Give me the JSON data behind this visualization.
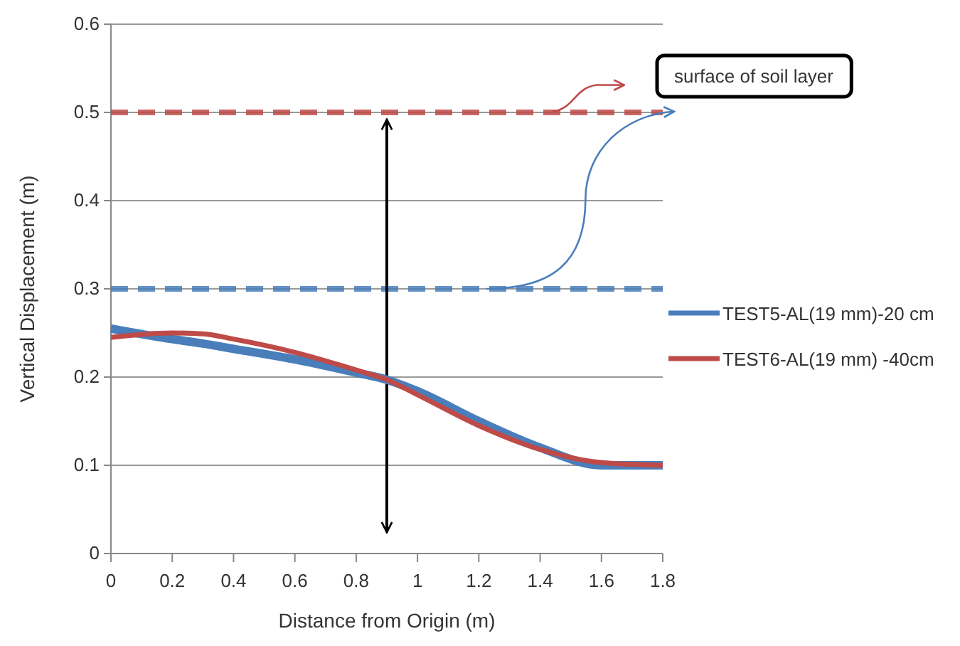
{
  "chart_data": {
    "type": "line",
    "xlabel": "Distance from Origin (m)",
    "ylabel": "Vertical Displacement (m)",
    "x": [
      0,
      0.2,
      0.3,
      0.4,
      0.6,
      0.8,
      0.9,
      1.0,
      1.2,
      1.4,
      1.6,
      1.8
    ],
    "series": [
      {
        "name": "TEST5-AL(19 mm)-20 cm",
        "color": "#4a7ebb",
        "values": [
          0.255,
          0.243,
          0.238,
          0.232,
          0.22,
          0.205,
          0.197,
          0.184,
          0.15,
          0.12,
          0.1,
          0.1
        ]
      },
      {
        "name": "TEST6-AL(19 mm) -40cm",
        "color": "#be4b48",
        "values": [
          0.245,
          0.25,
          0.249,
          0.243,
          0.228,
          0.208,
          0.197,
          0.18,
          0.145,
          0.118,
          0.103,
          0.1
        ]
      }
    ],
    "xlim": [
      0,
      1.8
    ],
    "xticks": [
      0,
      0.2,
      0.4,
      0.6,
      0.8,
      1,
      1.2,
      1.4,
      1.6,
      1.8
    ],
    "ylim": [
      0,
      0.6
    ],
    "yticks": [
      0,
      0.1,
      0.2,
      0.3,
      0.4,
      0.5,
      0.6
    ],
    "grid": "y",
    "legend": "right",
    "marker": "none",
    "line_style": "solid",
    "ref_lines": [
      {
        "axis": "y",
        "value": 0.5,
        "color": "#be4b48",
        "line_style": "dashed"
      },
      {
        "axis": "y",
        "value": 0.3,
        "color": "#4a7ebb",
        "line_style": "dashed"
      }
    ],
    "annotations": [
      "surface of soil layer"
    ]
  }
}
